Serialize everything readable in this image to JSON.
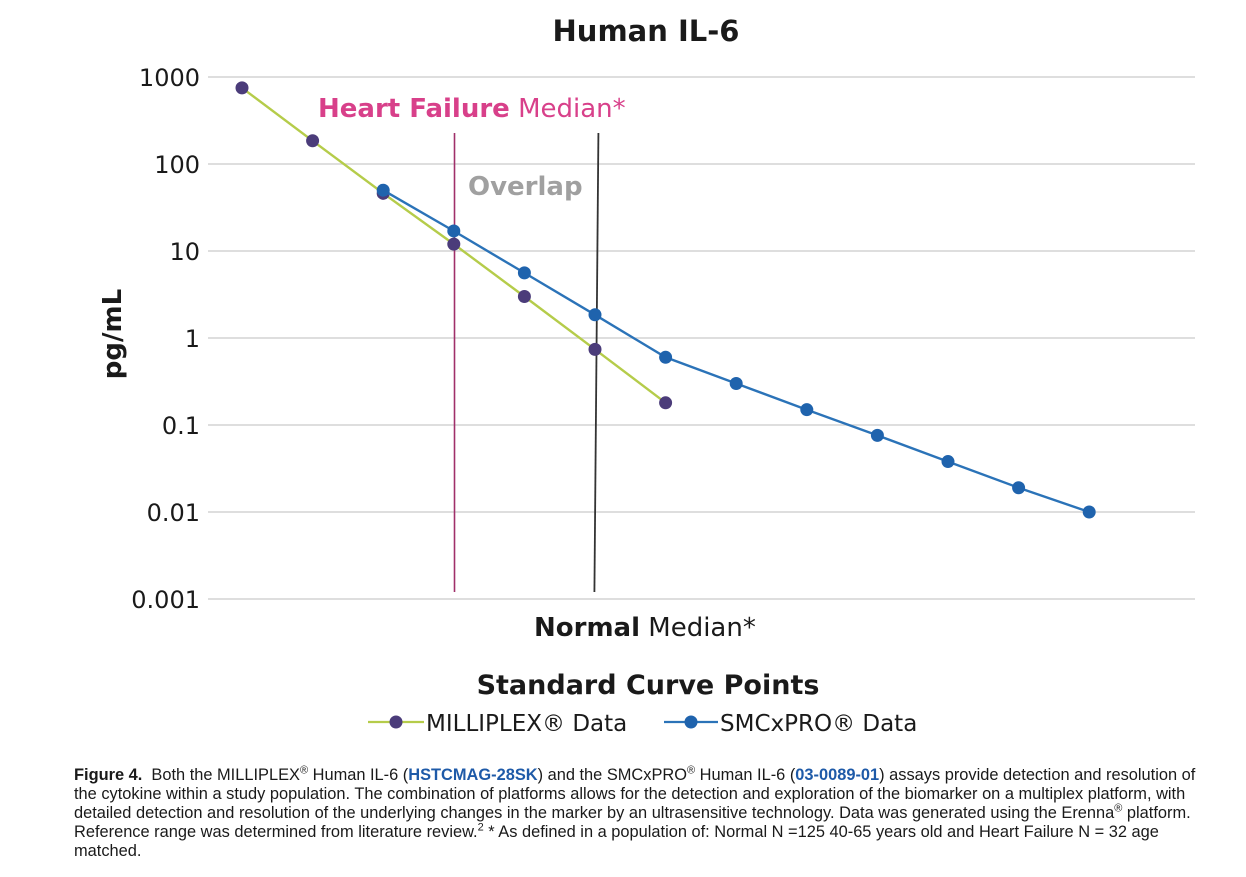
{
  "chart_data": {
    "type": "line",
    "title": "Human IL-6",
    "ylabel": "pg/mL",
    "xlabel": "Standard Curve Points",
    "yscale": "log",
    "ylim": [
      0.001,
      1000
    ],
    "yticks": [
      "1000",
      "100",
      "10",
      "1",
      "0.1",
      "0.01",
      "0.001"
    ],
    "grid": "horizontal",
    "legend_position": "bottom",
    "series": [
      {
        "name": "MILLIPLEX® Data",
        "color": "#b5cc4a",
        "marker_color": "#4b3c7a",
        "x": [
          1,
          2,
          3,
          4,
          5,
          6,
          7
        ],
        "values": [
          750,
          185,
          46,
          12,
          3,
          0.74,
          0.18
        ]
      },
      {
        "name": "SMCxPRO® Data",
        "color": "#2b73b8",
        "marker_color": "#1f63ad",
        "x": [
          3,
          4,
          5,
          6,
          7,
          8,
          9,
          10,
          11,
          12,
          13
        ],
        "values": [
          50,
          17,
          5.6,
          1.85,
          0.6,
          0.3,
          0.15,
          0.076,
          0.038,
          0.019,
          0.01
        ]
      }
    ],
    "annotations": {
      "heart_failure": {
        "bold": "Heart Failure",
        "rest": " Median*",
        "x": 4.01,
        "color": "#d8408a",
        "line_color": "#a0306a"
      },
      "normal": {
        "bold": "Normal",
        "rest": " Median*",
        "x": 6.02,
        "color": "#1a1a1a",
        "line_color": "#333333"
      },
      "overlap": {
        "text": "Overlap",
        "color": "#a0a0a0"
      }
    }
  },
  "caption": {
    "label": "Figure 4.",
    "t1": "Both the MILLIPLEX",
    "t2": " Human IL-6 (",
    "link1": "HSTCMAG-28SK",
    "t3": ") and the SMCxPRO",
    "t4": " Human IL-6 (",
    "link2": "03-0089-01",
    "t5": ") assays provide detection and resolution of the cytokine within a study population. The combination of platforms allows for the detection and exploration of the biomarker on a multiplex platform, with detailed detection and resolution of the underlying changes in the marker by an ultrasensitive technology. Data was generated using the Erenna",
    "t6": " platform. Reference range was determined from literature review.",
    "sup_ref": "2",
    "t7": " * As defined in a population of: Normal N =125 40-65 years old and Heart Failure N = 32 age matched.",
    "reg": "®"
  }
}
